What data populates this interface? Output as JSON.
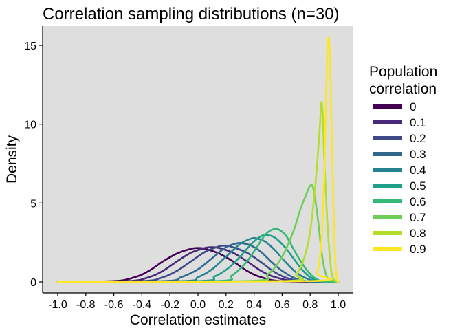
{
  "chart_data": {
    "type": "line",
    "title": "Correlation sampling distributions (n=30)",
    "xlabel": "Correlation estimates",
    "ylabel": "Density",
    "xlim": [
      -1.0,
      1.0
    ],
    "ylim": [
      0,
      15
    ],
    "x_ticks": [
      "-1.0",
      "-0.8",
      "-0.6",
      "-0.4",
      "-0.2",
      "0.0",
      "0.2",
      "0.4",
      "0.6",
      "0.8",
      "1.0"
    ],
    "y_ticks": [
      "0",
      "5",
      "10",
      "15"
    ],
    "grid": false,
    "background": "#dedede",
    "legend": {
      "title_line1": "Population",
      "title_line2": "correlation",
      "placement": "right",
      "entries": [
        "0",
        "0.1",
        "0.2",
        "0.3",
        "0.4",
        "0.5",
        "0.6",
        "0.7",
        "0.8",
        "0.9"
      ]
    },
    "series": [
      {
        "name": "0",
        "color": "#440154",
        "x": [
          -1.0,
          -0.6,
          -0.45,
          -0.35,
          -0.25,
          -0.15,
          -0.05,
          0.0,
          0.05,
          0.15,
          0.25,
          0.35,
          0.45,
          0.6,
          1.0
        ],
        "y": [
          0.0,
          0.05,
          0.3,
          0.7,
          1.3,
          1.8,
          2.1,
          2.15,
          2.1,
          1.8,
          1.3,
          0.7,
          0.3,
          0.05,
          0.0
        ]
      },
      {
        "name": "0.1",
        "color": "#482878",
        "x": [
          -1.0,
          -0.5,
          -0.35,
          -0.25,
          -0.15,
          -0.05,
          0.05,
          0.1,
          0.15,
          0.25,
          0.35,
          0.45,
          0.55,
          0.7,
          1.0
        ],
        "y": [
          0.0,
          0.05,
          0.3,
          0.7,
          1.3,
          1.85,
          2.15,
          2.2,
          2.15,
          1.85,
          1.3,
          0.7,
          0.3,
          0.05,
          0.0
        ]
      },
      {
        "name": "0.2",
        "color": "#3e4989",
        "x": [
          -1.0,
          -0.4,
          -0.25,
          -0.15,
          -0.05,
          0.05,
          0.15,
          0.2,
          0.25,
          0.35,
          0.45,
          0.55,
          0.65,
          0.78,
          1.0
        ],
        "y": [
          0.0,
          0.05,
          0.3,
          0.7,
          1.3,
          1.9,
          2.25,
          2.3,
          2.2,
          1.85,
          1.25,
          0.6,
          0.2,
          0.03,
          0.0
        ]
      },
      {
        "name": "0.3",
        "color": "#31688e",
        "x": [
          -1.0,
          -0.25,
          -0.12,
          0.0,
          0.1,
          0.2,
          0.28,
          0.32,
          0.38,
          0.45,
          0.52,
          0.6,
          0.7,
          0.8,
          1.0
        ],
        "y": [
          0.0,
          0.05,
          0.3,
          0.8,
          1.5,
          2.2,
          2.45,
          2.45,
          2.3,
          1.9,
          1.3,
          0.7,
          0.2,
          0.03,
          0.0
        ]
      },
      {
        "name": "0.4",
        "color": "#26828e",
        "x": [
          -1.0,
          -0.12,
          0.0,
          0.1,
          0.2,
          0.3,
          0.38,
          0.42,
          0.48,
          0.55,
          0.62,
          0.7,
          0.78,
          0.86,
          1.0
        ],
        "y": [
          0.0,
          0.05,
          0.3,
          0.8,
          1.6,
          2.4,
          2.75,
          2.75,
          2.55,
          2.0,
          1.3,
          0.6,
          0.2,
          0.03,
          0.0
        ]
      },
      {
        "name": "0.5",
        "color": "#1f9e89",
        "x": [
          -1.0,
          0.0,
          0.12,
          0.22,
          0.3,
          0.38,
          0.45,
          0.5,
          0.55,
          0.62,
          0.68,
          0.74,
          0.8,
          0.88,
          1.0
        ],
        "y": [
          0.0,
          0.05,
          0.35,
          0.9,
          1.6,
          2.4,
          2.9,
          2.95,
          2.8,
          2.2,
          1.5,
          0.8,
          0.3,
          0.03,
          0.0
        ]
      },
      {
        "name": "0.6",
        "color": "#35b779",
        "x": [
          -1.0,
          0.12,
          0.24,
          0.34,
          0.42,
          0.48,
          0.54,
          0.58,
          0.63,
          0.68,
          0.74,
          0.8,
          0.85,
          0.9,
          1.0
        ],
        "y": [
          0.0,
          0.05,
          0.4,
          1.2,
          2.2,
          3.0,
          3.35,
          3.3,
          2.9,
          2.1,
          1.2,
          0.5,
          0.15,
          0.02,
          0.0
        ]
      },
      {
        "name": "0.7",
        "color": "#6ece58",
        "x": [
          -1.0,
          0.35,
          0.5,
          0.6,
          0.68,
          0.73,
          0.77,
          0.8,
          0.82,
          0.84,
          0.86,
          0.88,
          0.9,
          0.93,
          1.0
        ],
        "y": [
          0.0,
          0.05,
          0.5,
          1.6,
          3.2,
          4.6,
          5.5,
          6.1,
          6.0,
          5.0,
          3.6,
          2.0,
          0.9,
          0.2,
          0.0
        ]
      },
      {
        "name": "0.8",
        "color": "#b5de2b",
        "x": [
          -1.0,
          0.6,
          0.7,
          0.76,
          0.8,
          0.83,
          0.85,
          0.87,
          0.88,
          0.89,
          0.9,
          0.92,
          0.94,
          0.96,
          1.0
        ],
        "y": [
          0.0,
          0.05,
          0.5,
          1.6,
          3.2,
          5.5,
          7.5,
          10.0,
          11.4,
          10.5,
          8.0,
          4.2,
          1.6,
          0.3,
          0.0
        ]
      },
      {
        "name": "0.9",
        "color": "#fde725",
        "x": [
          -1.0,
          0.8,
          0.85,
          0.88,
          0.9,
          0.91,
          0.92,
          0.93,
          0.94,
          0.95,
          0.96,
          0.97,
          0.98,
          0.99,
          1.0
        ],
        "y": [
          0.0,
          0.05,
          0.6,
          2.5,
          6.5,
          10.5,
          14.0,
          15.5,
          14.5,
          11.0,
          7.0,
          3.5,
          1.2,
          0.2,
          0.0
        ]
      }
    ]
  }
}
